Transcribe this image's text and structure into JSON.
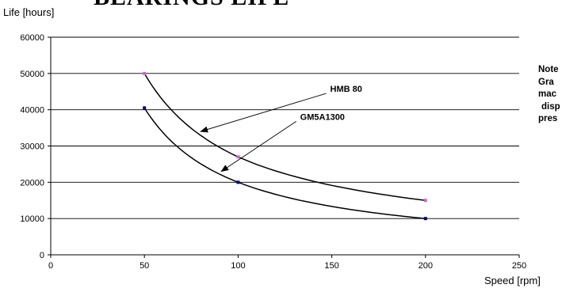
{
  "chart_data": {
    "type": "line",
    "title": "BEARINGS LIFE",
    "xlabel": "Speed [rpm]",
    "ylabel": "Life [hours]",
    "xlim": [
      0,
      250
    ],
    "ylim": [
      0,
      60000
    ],
    "x_ticks": [
      0,
      50,
      100,
      150,
      200,
      250
    ],
    "y_ticks": [
      0,
      10000,
      20000,
      30000,
      40000,
      50000,
      60000
    ],
    "grid": "horizontal",
    "series": [
      {
        "name": "HMB 80",
        "color": "#cc66cc",
        "x": [
          50,
          100,
          200
        ],
        "y": [
          50000,
          27000,
          15000
        ]
      },
      {
        "name": "GM5A1300",
        "color": "#000080",
        "x": [
          50,
          100,
          200
        ],
        "y": [
          40500,
          20000,
          10000
        ]
      }
    ],
    "annotations": [
      {
        "text": "HMB 80",
        "series": 0,
        "arrow_target": [
          80,
          34000
        ],
        "label_at": [
          147,
          44500
        ]
      },
      {
        "text": "GM5A1300",
        "series": 1,
        "arrow_target": [
          91,
          23000
        ],
        "label_at": [
          131,
          36800
        ]
      }
    ]
  },
  "note": {
    "lines": [
      "Note",
      "Gra",
      "mac",
      "disp",
      "pres"
    ]
  }
}
